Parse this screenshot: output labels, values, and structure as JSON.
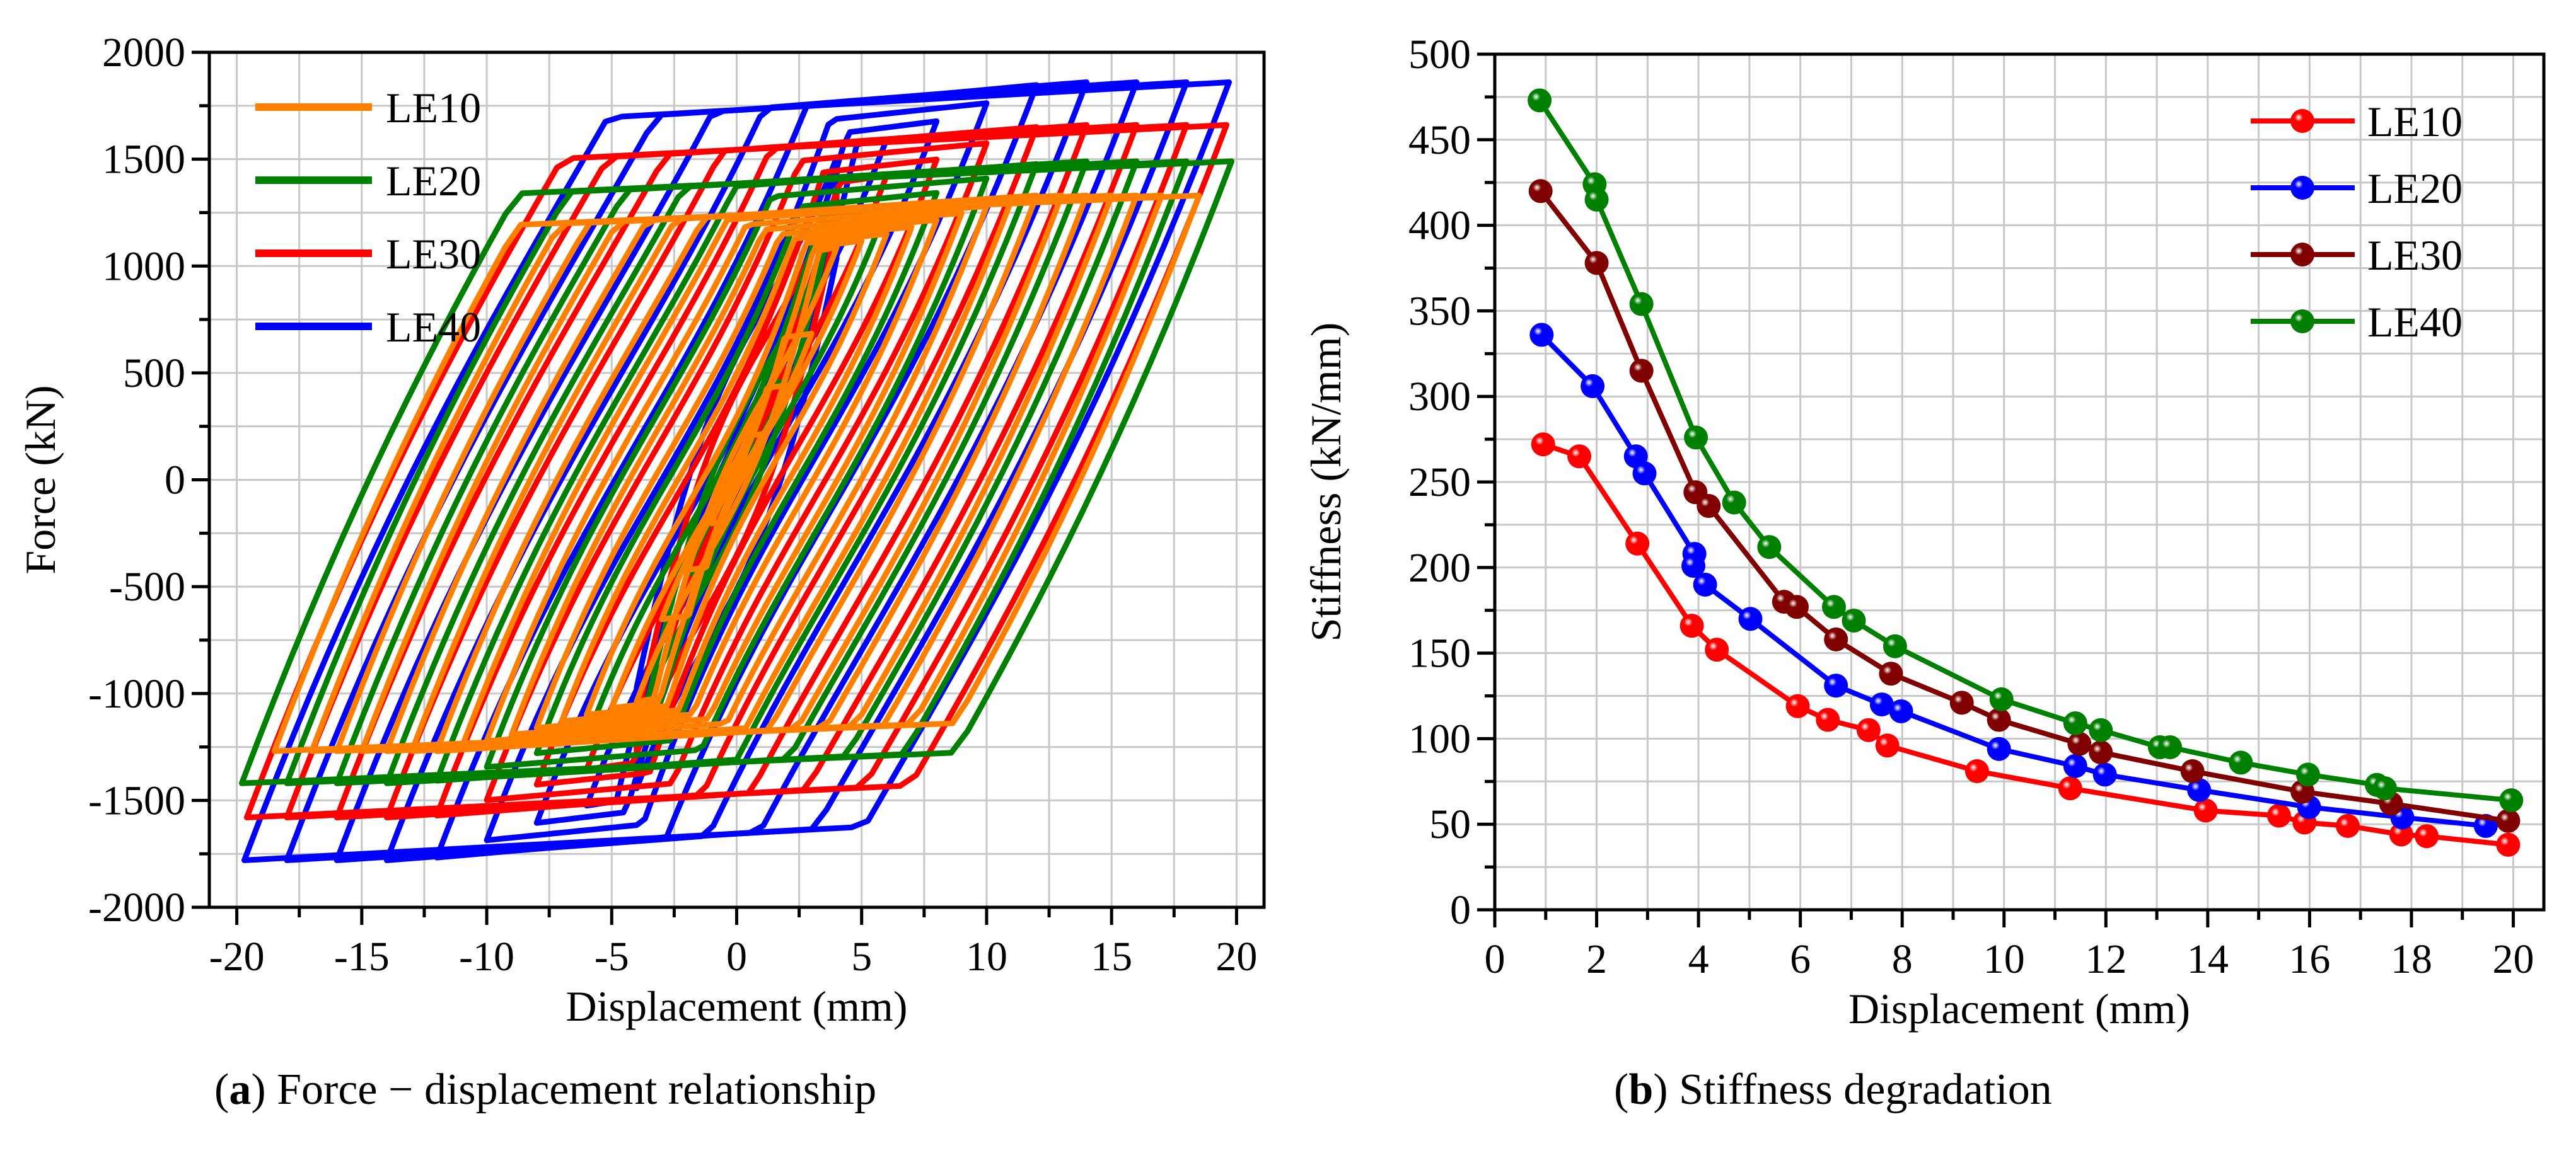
{
  "chart_data": [
    {
      "type": "line",
      "title": "",
      "caption_letter": "a",
      "caption_text": "Force − displacement relationship",
      "xlabel": "Displacement (mm)",
      "ylabel": "Force (kN)",
      "xlim": [
        -21.1,
        21.1
      ],
      "ylim": [
        -2000,
        2000
      ],
      "xticks": [
        -20,
        -15,
        -10,
        -5,
        0,
        5,
        10,
        15,
        20
      ],
      "yticks": [
        -2000,
        -1500,
        -1000,
        -500,
        0,
        500,
        1000,
        1500,
        2000
      ],
      "grid": true,
      "legend_position": "top-left",
      "description_kind": "hysteresis loops",
      "series": [
        {
          "name": "LE10",
          "color": "#FF7F00",
          "peak_pos": [
            18.5,
            1330
          ],
          "peak_neg": [
            -18.5,
            -1270
          ],
          "amplitudes": [
            1,
            2,
            3,
            4,
            5,
            6,
            7,
            8,
            9,
            10,
            11,
            12,
            13,
            14,
            15,
            16,
            17,
            18.5
          ]
        },
        {
          "name": "LE20",
          "color": "#008000",
          "peak_pos": [
            19.8,
            1490
          ],
          "peak_neg": [
            -20,
            -1420
          ],
          "amplitudes": [
            2,
            4,
            6,
            8,
            10,
            12,
            14,
            16,
            18,
            19.8
          ]
        },
        {
          "name": "LE30",
          "color": "#FF0000",
          "peak_pos": [
            19.6,
            1660
          ],
          "peak_neg": [
            -19.2,
            -1580
          ],
          "amplitudes": [
            2,
            4,
            6,
            8,
            10,
            12,
            14,
            16,
            18,
            19.6
          ]
        },
        {
          "name": "LE40",
          "color": "#0000FF",
          "peak_pos": [
            19.6,
            1860
          ],
          "peak_neg": [
            -19.8,
            -1780
          ],
          "amplitudes": [
            2,
            4,
            6,
            8,
            10,
            12,
            14,
            16,
            18,
            19.7
          ]
        }
      ]
    },
    {
      "type": "line",
      "title": "",
      "caption_letter": "b",
      "caption_text": "Stiffness degradation",
      "xlabel": "Displacement (mm)",
      "ylabel": "Stiffness (kN/mm)",
      "xlim": [
        0,
        20.6
      ],
      "ylim": [
        0,
        500
      ],
      "xticks": [
        0,
        2,
        4,
        6,
        8,
        10,
        12,
        14,
        16,
        18,
        20
      ],
      "yticks": [
        0,
        50,
        100,
        150,
        200,
        250,
        300,
        350,
        400,
        450,
        500
      ],
      "grid": true,
      "legend_position": "top-right",
      "series": [
        {
          "name": "LE10",
          "color": "#FF0000",
          "x": [
            0.95,
            1.66,
            2.8,
            3.87,
            4.36,
            5.95,
            6.54,
            7.34,
            7.71,
            9.47,
            11.3,
            13.96,
            15.4,
            15.9,
            16.75,
            17.8,
            18.3,
            19.9
          ],
          "y": [
            272,
            265,
            214,
            166,
            152,
            119,
            111,
            105,
            96,
            81,
            71,
            58,
            55,
            51,
            49,
            44,
            43,
            38
          ]
        },
        {
          "name": "LE20",
          "color": "#0000FF",
          "x": [
            0.92,
            1.92,
            2.77,
            2.94,
            3.92,
            3.9,
            4.13,
            5.02,
            6.7,
            7.6,
            7.98,
            9.9,
            11.4,
            11.98,
            13.83,
            15.99,
            17.82,
            19.46
          ],
          "y": [
            336,
            306,
            265,
            255,
            208,
            201,
            190,
            170,
            131,
            120,
            116,
            94,
            84,
            79,
            70,
            60,
            54,
            49
          ]
        },
        {
          "name": "LE30",
          "color": "#800000",
          "x": [
            0.9,
            2.0,
            2.88,
            3.94,
            4.2,
            5.68,
            5.93,
            6.7,
            7.78,
            9.17,
            9.9,
            11.48,
            11.9,
            13.7,
            15.86,
            17.6,
            19.9
          ],
          "y": [
            420,
            378,
            315,
            244,
            236,
            180,
            177,
            158,
            138,
            121,
            111,
            97,
            92,
            81,
            69,
            62,
            52
          ]
        },
        {
          "name": "LE40",
          "color": "#008000",
          "x": [
            0.88,
            1.96,
            2.0,
            2.88,
            3.95,
            4.7,
            5.39,
            6.66,
            7.05,
            7.86,
            9.95,
            11.4,
            11.9,
            13.06,
            13.26,
            14.65,
            15.97,
            17.32,
            17.48,
            19.96
          ],
          "y": [
            473,
            424,
            415,
            354,
            276,
            238,
            212,
            177,
            169,
            154,
            123,
            109,
            105,
            95,
            95,
            86,
            79,
            73,
            71,
            64
          ]
        }
      ]
    }
  ]
}
